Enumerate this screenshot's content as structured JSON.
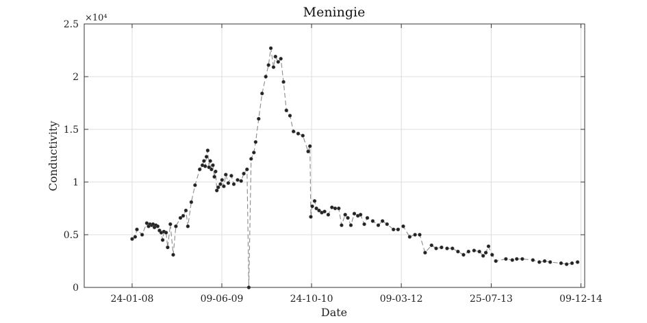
{
  "chart_data": {
    "type": "line",
    "title": "Meningie",
    "xlabel": "Date",
    "ylabel": "Conductivity",
    "y_exponent_label": "×10⁴",
    "y_scale_factor": 10000,
    "grid": true,
    "line_style": "dashed",
    "marker": "circle",
    "xlim": [
      "2007-05-01",
      "2014-12-30"
    ],
    "ylim": [
      0,
      25000
    ],
    "x_ticks": [
      {
        "date": "2008-01-24",
        "label": "24-01-08"
      },
      {
        "date": "2009-06-09",
        "label": "09-06-09"
      },
      {
        "date": "2010-10-24",
        "label": "24-10-10"
      },
      {
        "date": "2012-03-09",
        "label": "09-03-12"
      },
      {
        "date": "2013-07-25",
        "label": "25-07-13"
      },
      {
        "date": "2014-12-09",
        "label": "09-12-14"
      }
    ],
    "y_ticks": [
      {
        "value": 0,
        "label": "0"
      },
      {
        "value": 5000,
        "label": "0.5"
      },
      {
        "value": 10000,
        "label": "1"
      },
      {
        "value": 15000,
        "label": "1.5"
      },
      {
        "value": 20000,
        "label": "2"
      },
      {
        "value": 25000,
        "label": "2.5"
      }
    ],
    "series": [
      {
        "color": "#222222",
        "points": [
          [
            "2008-01-24",
            4600
          ],
          [
            "2008-02-10",
            4800
          ],
          [
            "2008-02-20",
            5500
          ],
          [
            "2008-03-20",
            5000
          ],
          [
            "2008-04-15",
            6100
          ],
          [
            "2008-04-25",
            5800
          ],
          [
            "2008-05-03",
            6000
          ],
          [
            "2008-05-12",
            5900
          ],
          [
            "2008-05-20",
            6000
          ],
          [
            "2008-05-28",
            5700
          ],
          [
            "2008-06-05",
            5900
          ],
          [
            "2008-06-15",
            5800
          ],
          [
            "2008-06-25",
            5400
          ],
          [
            "2008-07-05",
            5200
          ],
          [
            "2008-07-13",
            4500
          ],
          [
            "2008-07-20",
            5300
          ],
          [
            "2008-08-01",
            5200
          ],
          [
            "2008-08-10",
            3800
          ],
          [
            "2008-08-25",
            6000
          ],
          [
            "2008-09-10",
            3100
          ],
          [
            "2008-09-25",
            5800
          ],
          [
            "2008-10-20",
            6600
          ],
          [
            "2008-11-05",
            6800
          ],
          [
            "2008-11-20",
            7300
          ],
          [
            "2008-12-01",
            5800
          ],
          [
            "2008-12-20",
            8100
          ],
          [
            "2009-01-10",
            9700
          ],
          [
            "2009-02-05",
            11200
          ],
          [
            "2009-02-20",
            11600
          ],
          [
            "2009-03-01",
            12000
          ],
          [
            "2009-03-08",
            11500
          ],
          [
            "2009-03-15",
            12400
          ],
          [
            "2009-03-22",
            13000
          ],
          [
            "2009-03-29",
            11400
          ],
          [
            "2009-04-05",
            12000
          ],
          [
            "2009-04-12",
            11200
          ],
          [
            "2009-04-20",
            11600
          ],
          [
            "2009-04-28",
            10500
          ],
          [
            "2009-05-05",
            11000
          ],
          [
            "2009-05-12",
            9200
          ],
          [
            "2009-05-20",
            9500
          ],
          [
            "2009-06-01",
            9800
          ],
          [
            "2009-06-10",
            10200
          ],
          [
            "2009-06-20",
            9600
          ],
          [
            "2009-07-01",
            10700
          ],
          [
            "2009-07-15",
            9900
          ],
          [
            "2009-08-01",
            10600
          ],
          [
            "2009-08-15",
            9800
          ],
          [
            "2009-09-05",
            10200
          ],
          [
            "2009-09-25",
            10100
          ],
          [
            "2009-10-10",
            10800
          ],
          [
            "2009-10-28",
            11200
          ],
          [
            "2009-11-07",
            0
          ],
          [
            "2009-11-20",
            12200
          ],
          [
            "2009-12-05",
            12800
          ],
          [
            "2009-12-15",
            13800
          ],
          [
            "2010-01-01",
            16000
          ],
          [
            "2010-01-20",
            18400
          ],
          [
            "2010-02-10",
            20000
          ],
          [
            "2010-02-25",
            21100
          ],
          [
            "2010-03-10",
            22700
          ],
          [
            "2010-03-25",
            20900
          ],
          [
            "2010-04-05",
            21900
          ],
          [
            "2010-04-20",
            21400
          ],
          [
            "2010-05-05",
            21700
          ],
          [
            "2010-05-20",
            19500
          ],
          [
            "2010-06-05",
            16800
          ],
          [
            "2010-06-25",
            16300
          ],
          [
            "2010-07-15",
            14800
          ],
          [
            "2010-08-10",
            14600
          ],
          [
            "2010-09-05",
            14400
          ],
          [
            "2010-10-05",
            12900
          ],
          [
            "2010-10-15",
            13400
          ],
          [
            "2010-10-20",
            6700
          ],
          [
            "2010-10-28",
            7700
          ],
          [
            "2010-11-10",
            8200
          ],
          [
            "2010-11-20",
            7500
          ],
          [
            "2010-12-05",
            7300
          ],
          [
            "2010-12-20",
            7100
          ],
          [
            "2011-01-05",
            7200
          ],
          [
            "2011-01-25",
            6900
          ],
          [
            "2011-02-15",
            7600
          ],
          [
            "2011-03-05",
            7500
          ],
          [
            "2011-03-25",
            7500
          ],
          [
            "2011-04-10",
            5900
          ],
          [
            "2011-04-30",
            6900
          ],
          [
            "2011-05-15",
            6600
          ],
          [
            "2011-06-01",
            5900
          ],
          [
            "2011-06-20",
            7000
          ],
          [
            "2011-07-10",
            6800
          ],
          [
            "2011-07-25",
            6900
          ],
          [
            "2011-08-15",
            6000
          ],
          [
            "2011-09-01",
            6600
          ],
          [
            "2011-10-01",
            6300
          ],
          [
            "2011-11-01",
            5900
          ],
          [
            "2011-11-25",
            6300
          ],
          [
            "2011-12-20",
            6000
          ],
          [
            "2012-01-25",
            5500
          ],
          [
            "2012-02-20",
            5500
          ],
          [
            "2012-03-20",
            5800
          ],
          [
            "2012-04-25",
            4800
          ],
          [
            "2012-05-25",
            5000
          ],
          [
            "2012-06-20",
            5000
          ],
          [
            "2012-07-20",
            3300
          ],
          [
            "2012-08-25",
            4000
          ],
          [
            "2012-09-20",
            3700
          ],
          [
            "2012-10-20",
            3800
          ],
          [
            "2012-11-20",
            3700
          ],
          [
            "2012-12-20",
            3700
          ],
          [
            "2013-01-20",
            3400
          ],
          [
            "2013-02-20",
            3100
          ],
          [
            "2013-03-20",
            3400
          ],
          [
            "2013-04-20",
            3500
          ],
          [
            "2013-05-20",
            3400
          ],
          [
            "2013-06-10",
            3000
          ],
          [
            "2013-06-25",
            3300
          ],
          [
            "2013-07-10",
            3900
          ],
          [
            "2013-07-30",
            3100
          ],
          [
            "2013-08-20",
            2500
          ],
          [
            "2013-10-15",
            2700
          ],
          [
            "2013-11-20",
            2600
          ],
          [
            "2013-12-15",
            2700
          ],
          [
            "2014-01-15",
            2700
          ],
          [
            "2014-03-15",
            2600
          ],
          [
            "2014-04-20",
            2400
          ],
          [
            "2014-05-20",
            2500
          ],
          [
            "2014-06-20",
            2400
          ],
          [
            "2014-08-20",
            2300
          ],
          [
            "2014-09-20",
            2200
          ],
          [
            "2014-10-20",
            2300
          ],
          [
            "2014-11-20",
            2400
          ]
        ]
      }
    ]
  }
}
